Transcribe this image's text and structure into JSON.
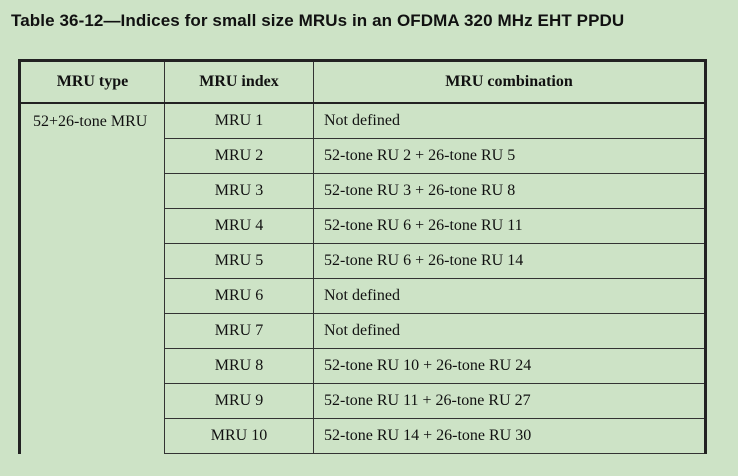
{
  "caption": "Table 36-12—Indices for small size MRUs in an OFDMA 320 MHz EHT PPDU",
  "table": {
    "headers": {
      "type": "MRU type",
      "index": "MRU index",
      "combination": "MRU combination"
    },
    "group_type": "52+26-tone MRU",
    "rows": [
      {
        "index": "MRU 1",
        "combination": "Not defined"
      },
      {
        "index": "MRU 2",
        "combination": "52-tone RU 2 + 26-tone RU 5"
      },
      {
        "index": "MRU 3",
        "combination": "52-tone RU 3 + 26-tone RU 8"
      },
      {
        "index": "MRU 4",
        "combination": "52-tone RU 6 + 26-tone RU 11"
      },
      {
        "index": "MRU 5",
        "combination": "52-tone RU 6 + 26-tone RU 14"
      },
      {
        "index": "MRU 6",
        "combination": "Not defined"
      },
      {
        "index": "MRU 7",
        "combination": "Not defined"
      },
      {
        "index": "MRU 8",
        "combination": "52-tone RU 10 + 26-tone RU 24"
      },
      {
        "index": "MRU 9",
        "combination": "52-tone RU 11 + 26-tone RU 27"
      },
      {
        "index": "MRU 10",
        "combination": "52-tone RU 14 + 26-tone RU 30"
      }
    ]
  }
}
